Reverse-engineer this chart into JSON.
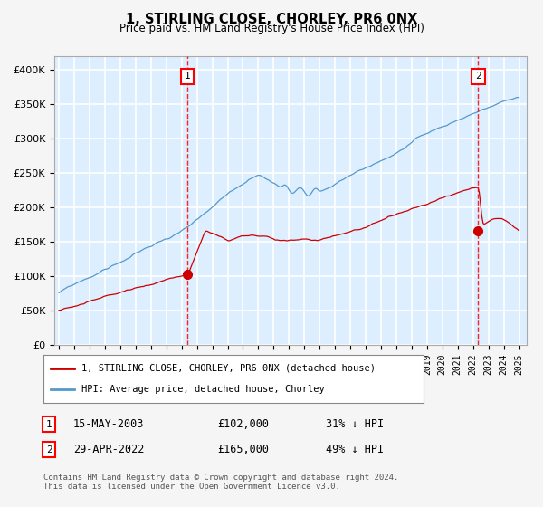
{
  "title": "1, STIRLING CLOSE, CHORLEY, PR6 0NX",
  "subtitle": "Price paid vs. HM Land Registry's House Price Index (HPI)",
  "ylim": [
    0,
    420000
  ],
  "yticks": [
    0,
    50000,
    100000,
    150000,
    200000,
    250000,
    300000,
    350000,
    400000
  ],
  "xlim_start": 1994.7,
  "xlim_end": 2025.5,
  "plot_bg_color": "#ddeeff",
  "fig_bg_color": "#f5f5f5",
  "grid_color": "#ffffff",
  "red_line_color": "#cc0000",
  "blue_line_color": "#5599cc",
  "marker1_x": 2003.37,
  "marker1_y": 102000,
  "marker1_label": "1",
  "marker1_date": "15-MAY-2003",
  "marker1_price": "£102,000",
  "marker1_hpi": "31% ↓ HPI",
  "marker2_x": 2022.33,
  "marker2_y": 165000,
  "marker2_label": "2",
  "marker2_date": "29-APR-2022",
  "marker2_price": "£165,000",
  "marker2_hpi": "49% ↓ HPI",
  "legend_line1": "1, STIRLING CLOSE, CHORLEY, PR6 0NX (detached house)",
  "legend_line2": "HPI: Average price, detached house, Chorley",
  "footer1": "Contains HM Land Registry data © Crown copyright and database right 2024.",
  "footer2": "This data is licensed under the Open Government Licence v3.0."
}
